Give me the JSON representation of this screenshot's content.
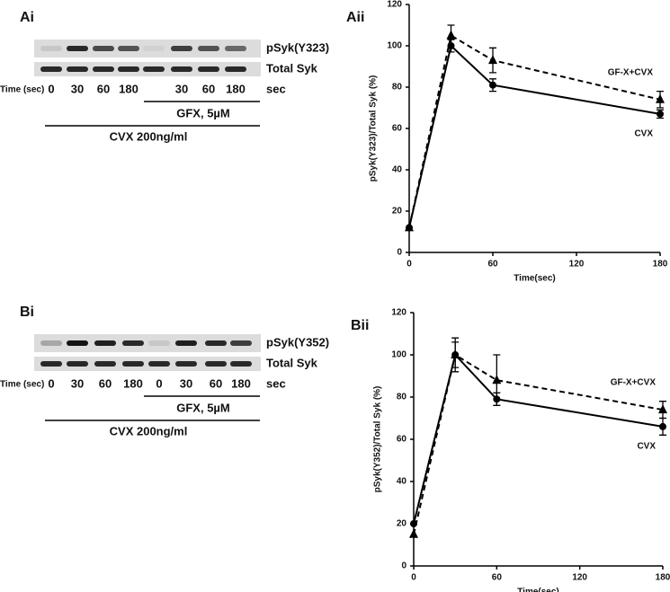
{
  "blots": [
    {
      "panel": "Ai",
      "rows": [
        "pSyk(Y323)",
        "Total Syk"
      ],
      "time_label": "Time (sec)",
      "lanes": [
        "0",
        "30",
        "60",
        "180",
        null,
        "30",
        "60",
        "180"
      ],
      "unit": "sec",
      "inhibitor": "GFX, 5µM",
      "treatment": "CVX 200ng/ml"
    },
    {
      "panel": "Bi",
      "rows": [
        "pSyk(Y352)",
        "Total Syk"
      ],
      "time_label": "Time (sec)",
      "lanes": [
        "0",
        "30",
        "60",
        "180",
        "0",
        "30",
        "60",
        "180"
      ],
      "unit": "sec",
      "inhibitor": "GFX, 5µM",
      "treatment": "CVX 200ng/ml"
    }
  ],
  "chart_data": [
    {
      "type": "line",
      "panel": "Aii",
      "x_label": "Time(sec)",
      "y_label": "pSyk(Y323)/Total Syk (%)",
      "xlim": [
        0,
        180
      ],
      "xticks": [
        0,
        60,
        120,
        180
      ],
      "ylim": [
        0,
        120
      ],
      "yticks": [
        0,
        20,
        40,
        60,
        80,
        100,
        120
      ],
      "x": [
        0,
        30,
        60,
        180
      ],
      "series": [
        {
          "name": "GF-X+CVX",
          "color": "#000000",
          "dashed": true,
          "marker": "triangle",
          "values": [
            12,
            105,
            93,
            74
          ],
          "errors": [
            0,
            5,
            6,
            4
          ]
        },
        {
          "name": "CVX",
          "color": "#000000",
          "dashed": false,
          "marker": "circle",
          "values": [
            12,
            100,
            81,
            67
          ],
          "errors": [
            0,
            3,
            3,
            2
          ]
        }
      ]
    },
    {
      "type": "line",
      "panel": "Bii",
      "x_label": "Time(sec)",
      "y_label": "pSyk(Y352)/Total Syk (%)",
      "xlim": [
        0,
        180
      ],
      "xticks": [
        0,
        60,
        120,
        180
      ],
      "ylim": [
        0,
        120
      ],
      "yticks": [
        0,
        20,
        40,
        60,
        80,
        100,
        120
      ],
      "x": [
        0,
        30,
        60,
        180
      ],
      "series": [
        {
          "name": "GF-X+CVX",
          "color": "#000000",
          "dashed": true,
          "marker": "triangle",
          "values": [
            15,
            100,
            88,
            74
          ],
          "errors": [
            0,
            8,
            12,
            4
          ]
        },
        {
          "name": "CVX",
          "color": "#000000",
          "dashed": false,
          "marker": "circle",
          "values": [
            20,
            100,
            79,
            66
          ],
          "errors": [
            0,
            6,
            3,
            4
          ]
        }
      ]
    }
  ]
}
